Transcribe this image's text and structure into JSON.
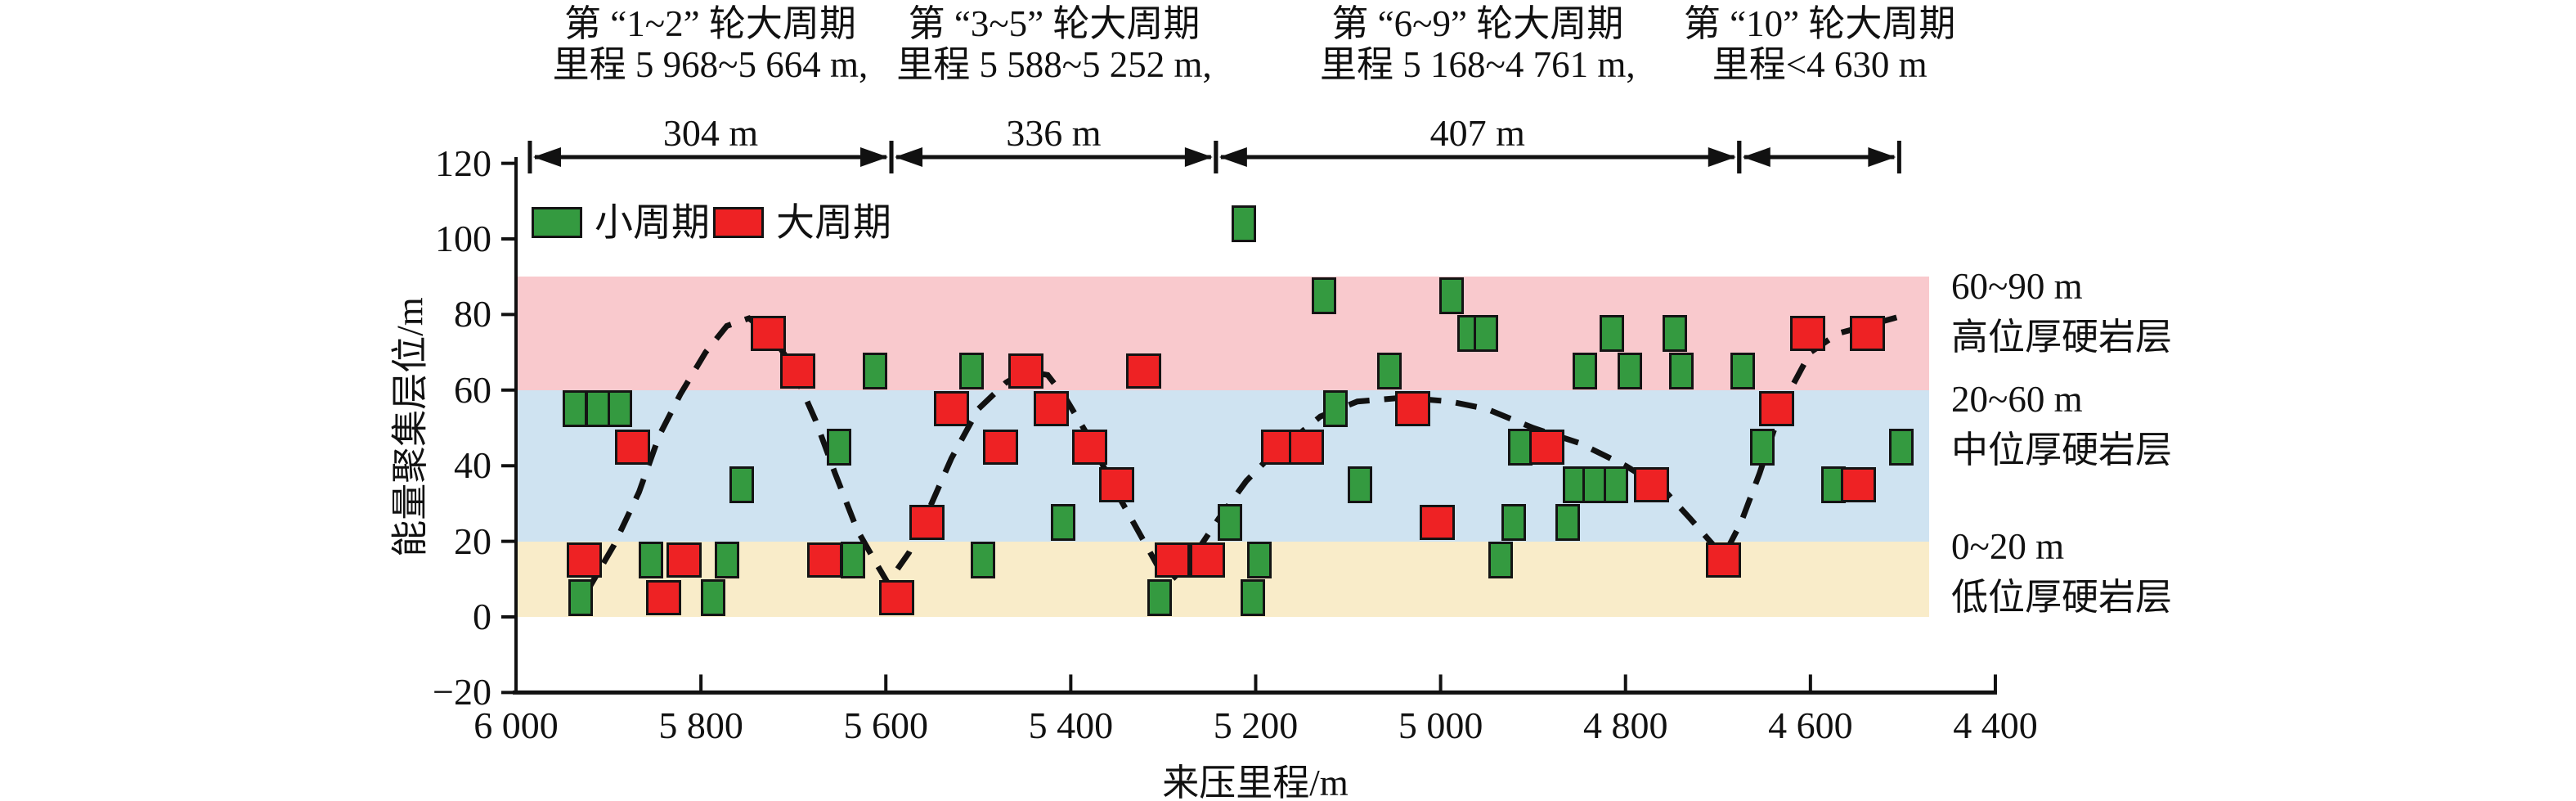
{
  "figure": {
    "x_axis_title": "来压里程/m",
    "y_axis_title": "能量聚集层位/m"
  },
  "headers": [
    {
      "line1": "第 “1~2” 轮大周期",
      "line2": "里程 5 968~5 664 m,",
      "center_m": 5790
    },
    {
      "line1": "第 “3~5” 轮大周期",
      "line2": "里程 5 588~5 252 m,",
      "center_m": 5418
    },
    {
      "line1": "第 “6~9” 轮大周期",
      "line2": "里程 5 168~4 761 m,",
      "center_m": 4960
    },
    {
      "line1": "第 “10” 轮大周期",
      "line2": "里程<4 630 m",
      "center_m": 4590
    }
  ],
  "spans": [
    {
      "from_m": 5985,
      "to_m": 5594,
      "label": "304 m"
    },
    {
      "from_m": 5594,
      "to_m": 5243,
      "label": "336 m"
    },
    {
      "from_m": 5243,
      "to_m": 4677,
      "label": "407 m"
    },
    {
      "from_m": 4677,
      "to_m": 4504,
      "label": ""
    }
  ],
  "legend": [
    {
      "label": "小周期",
      "color": "#349a40"
    },
    {
      "label": "大周期",
      "color": "#ee2224"
    }
  ],
  "side_bands": [
    {
      "range_label": "60~90 m",
      "name_label": "高位厚硬岩层",
      "lo": 60,
      "hi": 90,
      "color": "#f9c9cd"
    },
    {
      "range_label": "20~60 m",
      "name_label": "中位厚硬岩层",
      "lo": 20,
      "hi": 60,
      "color": "#cfe3f1"
    },
    {
      "range_label": "0~20 m",
      "name_label": "低位厚硬岩层",
      "lo": 0,
      "hi": 20,
      "color": "#f9ecc9"
    }
  ],
  "chart_data": {
    "type": "scatter",
    "xlabel": "来压里程/m",
    "ylabel": "能量聚集层位/m",
    "x_range": [
      6000,
      4400
    ],
    "y_range": [
      -20,
      120
    ],
    "x_tick_labels": [
      "6 000",
      "5 800",
      "5 600",
      "5 400",
      "5 200",
      "5 000",
      "4 800",
      "4 600",
      "4 400"
    ],
    "x_tick_values": [
      6000,
      5800,
      5600,
      5400,
      5200,
      5000,
      4800,
      4600,
      4400
    ],
    "y_tick_labels": [
      "120",
      "100",
      "80",
      "60",
      "40",
      "20",
      "0",
      "−20"
    ],
    "y_tick_values": [
      120,
      100,
      80,
      60,
      40,
      20,
      0,
      -20
    ],
    "band_x_end_m": 4472,
    "series": [
      {
        "name": "小周期",
        "color": "#349a40",
        "points": [
          [
            5936,
            55
          ],
          [
            5912,
            55
          ],
          [
            5888,
            55
          ],
          [
            5930,
            5
          ],
          [
            5854,
            15
          ],
          [
            5787,
            5
          ],
          [
            5772,
            15
          ],
          [
            5756,
            35
          ],
          [
            5651,
            45
          ],
          [
            5636,
            15
          ],
          [
            5612,
            65
          ],
          [
            5507,
            65
          ],
          [
            5495,
            15
          ],
          [
            5408,
            25
          ],
          [
            5304,
            5
          ],
          [
            5228,
            25
          ],
          [
            5203,
            5
          ],
          [
            5196,
            15
          ],
          [
            5213,
            104
          ],
          [
            5126,
            85
          ],
          [
            5114,
            55
          ],
          [
            5087,
            35
          ],
          [
            5055,
            65
          ],
          [
            4988,
            85
          ],
          [
            4969,
            75
          ],
          [
            4951,
            75
          ],
          [
            4935,
            15
          ],
          [
            4921,
            25
          ],
          [
            4914,
            45
          ],
          [
            4863,
            25
          ],
          [
            4855,
            35
          ],
          [
            4833,
            35
          ],
          [
            4810,
            35
          ],
          [
            4844,
            65
          ],
          [
            4815,
            75
          ],
          [
            4795,
            65
          ],
          [
            4747,
            75
          ],
          [
            4740,
            65
          ],
          [
            4673,
            65
          ],
          [
            4652,
            45
          ],
          [
            4575,
            35
          ],
          [
            4502,
            45
          ]
        ]
      },
      {
        "name": "大周期",
        "color": "#ee2224",
        "points": [
          [
            5926,
            15
          ],
          [
            5874,
            45
          ],
          [
            5840,
            5
          ],
          [
            5818,
            15
          ],
          [
            5727,
            75
          ],
          [
            5695,
            65
          ],
          [
            5666,
            15
          ],
          [
            5588,
            5
          ],
          [
            5556,
            25
          ],
          [
            5529,
            55
          ],
          [
            5476,
            45
          ],
          [
            5449,
            65
          ],
          [
            5421,
            55
          ],
          [
            5380,
            45
          ],
          [
            5350,
            35
          ],
          [
            5321,
            65
          ],
          [
            5290,
            15
          ],
          [
            5252,
            15
          ],
          [
            5175,
            45
          ],
          [
            5145,
            45
          ],
          [
            5030,
            55
          ],
          [
            5004,
            25
          ],
          [
            4885,
            45
          ],
          [
            4772,
            35
          ],
          [
            4694,
            15
          ],
          [
            4637,
            55
          ],
          [
            4603,
            75
          ],
          [
            4548,
            35
          ],
          [
            4538,
            75
          ]
        ]
      }
    ],
    "trend_curve": [
      [
        5925,
        6
      ],
      [
        5894,
        19
      ],
      [
        5867,
        33
      ],
      [
        5845,
        48
      ],
      [
        5822,
        59
      ],
      [
        5795,
        70
      ],
      [
        5772,
        77
      ],
      [
        5748,
        79
      ],
      [
        5722,
        74
      ],
      [
        5703,
        67
      ],
      [
        5676,
        52
      ],
      [
        5655,
        38
      ],
      [
        5631,
        23
      ],
      [
        5610,
        14
      ],
      [
        5598,
        9
      ],
      [
        5575,
        17
      ],
      [
        5556,
        27
      ],
      [
        5529,
        42
      ],
      [
        5500,
        55
      ],
      [
        5470,
        62
      ],
      [
        5449,
        65
      ],
      [
        5425,
        64
      ],
      [
        5406,
        58
      ],
      [
        5379,
        47
      ],
      [
        5353,
        34
      ],
      [
        5330,
        24
      ],
      [
        5305,
        13
      ],
      [
        5290,
        10
      ],
      [
        5270,
        15
      ],
      [
        5240,
        26
      ],
      [
        5210,
        36
      ],
      [
        5186,
        42
      ],
      [
        5160,
        47
      ],
      [
        5130,
        53
      ],
      [
        5090,
        57
      ],
      [
        5040,
        58
      ],
      [
        4990,
        57
      ],
      [
        4950,
        55
      ],
      [
        4900,
        50
      ],
      [
        4850,
        46
      ],
      [
        4800,
        40
      ],
      [
        4760,
        34
      ],
      [
        4730,
        26
      ],
      [
        4705,
        19
      ],
      [
        4694,
        16
      ],
      [
        4675,
        25
      ],
      [
        4655,
        38
      ],
      [
        4640,
        49
      ],
      [
        4622,
        60
      ],
      [
        4600,
        70
      ],
      [
        4570,
        75
      ],
      [
        4540,
        77
      ],
      [
        4510,
        79
      ],
      [
        4496,
        80
      ]
    ]
  }
}
